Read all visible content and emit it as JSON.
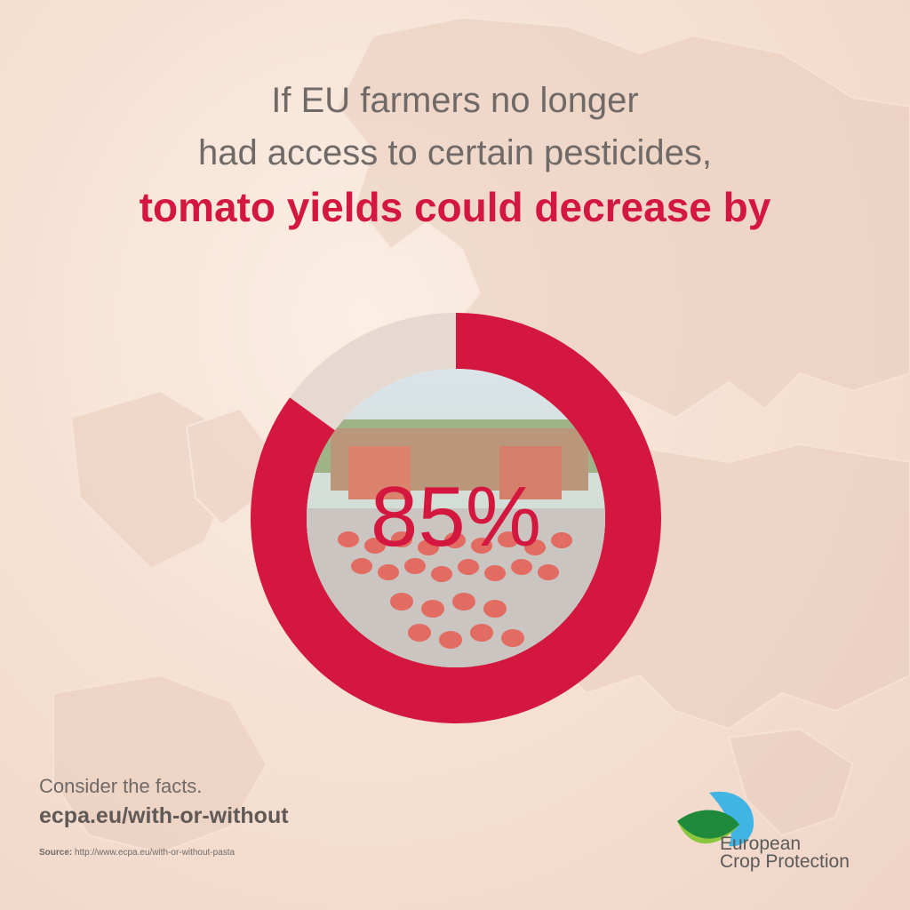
{
  "headline": {
    "line1": "If EU farmers no longer",
    "line2": "had access to certain pesticides,",
    "line3": "tomato yields could decrease by"
  },
  "chart_data": {
    "type": "pie",
    "variant": "donut",
    "title": "",
    "center_label": "85%",
    "slices": [
      {
        "label": "",
        "value": 85,
        "color": "#d4173e"
      },
      {
        "label": "",
        "value": 15,
        "color": "#e6d9d2"
      }
    ],
    "center_image": "tomato-harvest-photo"
  },
  "footer": {
    "consider": "Consider the facts.",
    "link": "ecpa.eu/with-or-without",
    "source_label": "Source:",
    "source_url": "http://www.ecpa.eu/with-or-without-pasta"
  },
  "logo": {
    "line1": "European",
    "line2": "Crop Protection",
    "icon": "ecpa-leaf-drop-icon"
  },
  "colors": {
    "accent": "#d4173e",
    "text": "#6f6a68",
    "background": "#f6e2d4"
  }
}
